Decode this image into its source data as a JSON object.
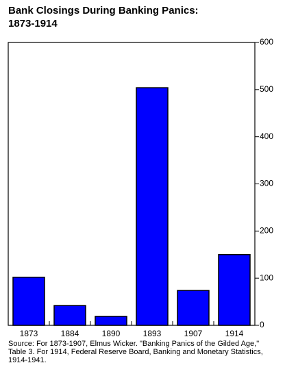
{
  "chart_data": {
    "type": "bar",
    "title": "Bank Closings During Banking Panics: 1873-1914",
    "categories": [
      "1873",
      "1884",
      "1890",
      "1893",
      "1907",
      "1914"
    ],
    "values": [
      102,
      42,
      19,
      504,
      74,
      150
    ],
    "color": "#0000ff",
    "ylim": [
      0,
      600
    ],
    "yticks": [
      0,
      100,
      200,
      300,
      400,
      500,
      600
    ],
    "note": "Source: For 1873-1907, Elmus Wicker. \"Banking Panics of the Gilded Age,\"  Table 3.  For 1914, Federal Reserve Board, Banking and Monetary Statistics, 1914-1941."
  }
}
